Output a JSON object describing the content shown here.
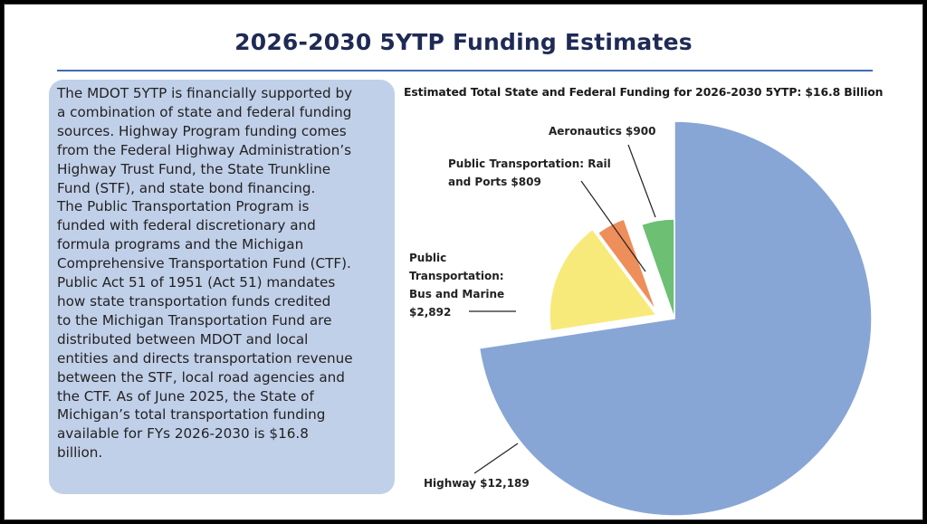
{
  "page_title": "2026-2030 5YTP Funding Estimates",
  "body_lines": [
    "The MDOT 5YTP is financially supported by",
    "a combination of state and federal funding",
    "sources. Highway Program funding comes",
    "from the Federal Highway Administration’s",
    "Highway Trust Fund, the State Trunkline",
    "Fund (STF), and state bond financing.",
    "The Public Transportation Program is",
    "funded with federal discretionary and",
    "formula programs and the Michigan",
    "Comprehensive Transportation Fund (CTF).",
    "Public Act 51 of 1951 (Act 51) mandates",
    "how state transportation funds credited",
    "to the Michigan Transportation Fund are",
    "distributed between MDOT and local",
    "entities and directs transportation revenue",
    "between the STF, local road agencies and",
    "the CTF. As of June 2025, the State of",
    "Michigan’s total transportation funding",
    "available for FYs 2026-2030 is $16.8",
    "billion."
  ],
  "colors": {
    "title": "#1f2a55",
    "rule": "#3d6db3",
    "text_box": "#c1d0e9"
  },
  "chart_data": {
    "type": "pie",
    "title": "Estimated Total State and Federal Funding for 2026-2030 5YTP: $16.8 Billion",
    "slices": [
      {
        "label_lines": [
          "Highway $12,189"
        ],
        "value": 12189,
        "color": "#88a6d5"
      },
      {
        "label_lines": [
          "Public",
          "Transportation:",
          "Bus and Marine",
          "$2,892"
        ],
        "value": 2892,
        "color": "#f7ea7b"
      },
      {
        "label_lines": [
          "Public Transportation: Rail",
          "and Ports $809"
        ],
        "value": 809,
        "color": "#ee8e5a"
      },
      {
        "label_lines": [
          "Aeronautics $900"
        ],
        "value": 900,
        "color": "#6cbf73"
      }
    ],
    "exploded": true,
    "legend": "none"
  }
}
